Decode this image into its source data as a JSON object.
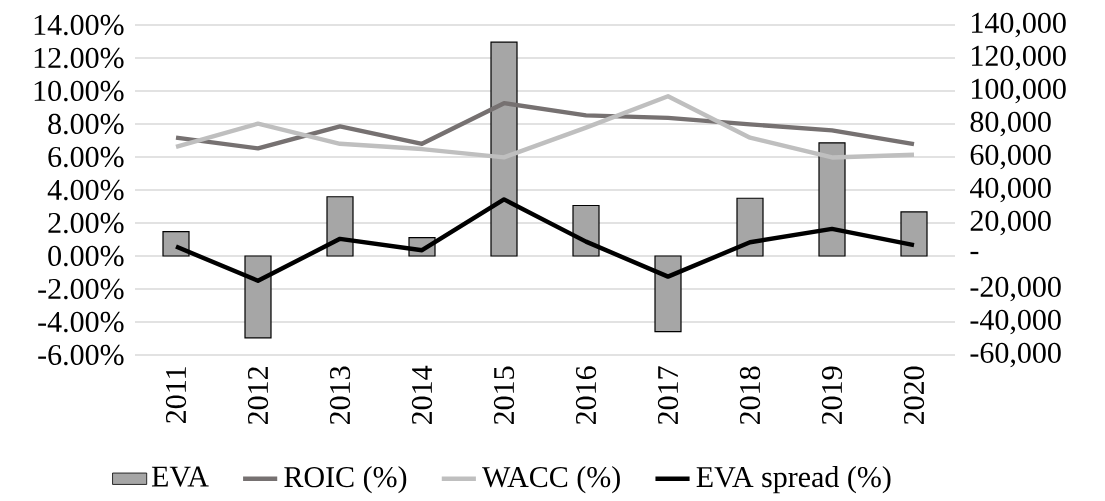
{
  "chart_data": {
    "type": "line",
    "categories": [
      "2011",
      "2012",
      "2013",
      "2014",
      "2015",
      "2016",
      "2017",
      "2018",
      "2019",
      "2020"
    ],
    "series": [
      {
        "name": "EVA",
        "type": "bar",
        "axis": "y2",
        "color": "#a6a6a6",
        "values": [
          14800,
          -49600,
          35900,
          11100,
          129600,
          30600,
          -45900,
          35000,
          68600,
          26700
        ]
      },
      {
        "name": "ROIC (%)",
        "color": "#767171",
        "values": [
          7.17,
          6.52,
          7.85,
          6.8,
          9.26,
          8.52,
          8.37,
          7.98,
          7.61,
          6.78
        ]
      },
      {
        "name": "WACC (%)",
        "color": "#bfbfbf",
        "values": [
          6.61,
          8.02,
          6.8,
          6.48,
          5.98,
          7.78,
          9.68,
          7.17,
          5.97,
          6.14
        ]
      },
      {
        "name": "EVA spread (%)",
        "color": "#000000",
        "values": [
          0.57,
          -1.5,
          1.04,
          0.35,
          3.43,
          0.87,
          -1.25,
          0.83,
          1.64,
          0.66
        ]
      }
    ],
    "ylim": [
      -6,
      14
    ],
    "yticks": [
      {
        "value": -6,
        "label": "-6.00%"
      },
      {
        "value": -4,
        "label": "-4.00%"
      },
      {
        "value": -2,
        "label": "-2.00%"
      },
      {
        "value": 0,
        "label": "0.00%"
      },
      {
        "value": 2,
        "label": "2.00%"
      },
      {
        "value": 4,
        "label": "4.00%"
      },
      {
        "value": 6,
        "label": "6.00%"
      },
      {
        "value": 8,
        "label": "8.00%"
      },
      {
        "value": 10,
        "label": "10.00%"
      },
      {
        "value": 12,
        "label": "12.00%"
      },
      {
        "value": 14,
        "label": "14.00%"
      }
    ],
    "y2lim": [
      -60000,
      140000
    ],
    "y2ticks": [
      {
        "value": -60000,
        "label": "-60,000"
      },
      {
        "value": -40000,
        "label": "-40,000"
      },
      {
        "value": -20000,
        "label": "-20,000"
      },
      {
        "value": 0,
        "label": "-"
      },
      {
        "value": 20000,
        "label": "20,000"
      },
      {
        "value": 40000,
        "label": "40,000"
      },
      {
        "value": 60000,
        "label": "60,000"
      },
      {
        "value": 80000,
        "label": "80,000"
      },
      {
        "value": 100000,
        "label": "100,000"
      },
      {
        "value": 120000,
        "label": "120,000"
      },
      {
        "value": 140000,
        "label": "140,000"
      }
    ],
    "grid": "y",
    "legend": "bottom"
  }
}
